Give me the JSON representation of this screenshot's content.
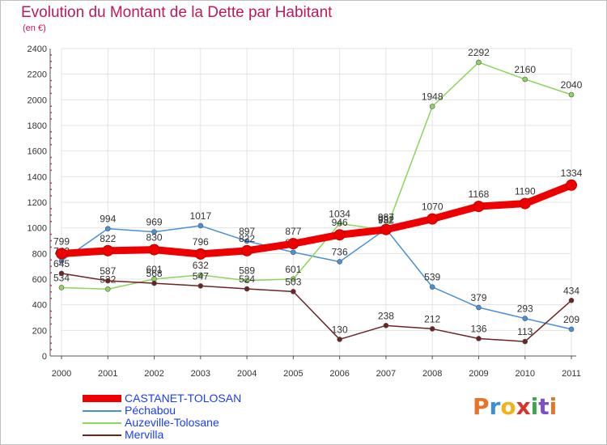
{
  "title": "Evolution du Montant de la Dette par Habitant",
  "subtitle": "(en €)",
  "logo_text": "Proxiti",
  "logo_colors": [
    "#e8742a",
    "#3a8fd8",
    "#f2b21c",
    "#d9342b",
    "#3ba64c",
    "#7b4fc7",
    "#e8742a"
  ],
  "colors": {
    "title": "#c2185b",
    "grid": "#e3e3e3",
    "axis_text": "#333333"
  },
  "chart_data": {
    "type": "line",
    "x": [
      "2000",
      "2001",
      "2002",
      "2003",
      "2004",
      "2005",
      "2006",
      "2007",
      "2008",
      "2009",
      "2010",
      "2011"
    ],
    "ylim": [
      0,
      2400
    ],
    "yticks": [
      0,
      200,
      400,
      600,
      800,
      1000,
      1200,
      1400,
      1600,
      1800,
      2000,
      2200,
      2400
    ],
    "grid": true,
    "legend_position": "bottom-left",
    "series": [
      {
        "name": "CASTANET-TOLOSAN",
        "color": "#ee0000",
        "thick": true,
        "values": [
          799,
          822,
          830,
          796,
          822,
          877,
          946,
          987,
          1070,
          1168,
          1190,
          1334
        ],
        "labels": [
          "799",
          "822",
          "830",
          "796",
          "822",
          "877",
          "946",
          "987",
          "1070",
          "1168",
          "1190",
          "1334"
        ]
      },
      {
        "name": "Péchabou",
        "color": "#4a90d9",
        "thick": false,
        "values": [
          742,
          994,
          969,
          1017,
          897,
          810,
          736,
          992,
          539,
          379,
          293,
          209
        ],
        "labels": [
          "742",
          "994",
          "969",
          "1017",
          "897",
          "810",
          "736",
          "992",
          "539",
          "379",
          "293",
          "209"
        ]
      },
      {
        "name": "Auzeville-Tolosane",
        "color": "#8ed45f",
        "thick": false,
        "values": [
          534,
          522,
          601,
          632,
          589,
          601,
          1034,
          982,
          1948,
          2292,
          2160,
          2040
        ],
        "labels": [
          "534",
          "522",
          "601",
          "632",
          "589",
          "601",
          "1034",
          "982",
          "1948",
          "2292",
          "2160",
          "2040"
        ]
      },
      {
        "name": "Mervilla",
        "color": "#6b2323",
        "thick": false,
        "values": [
          645,
          587,
          568,
          547,
          524,
          503,
          130,
          238,
          212,
          136,
          113,
          434
        ],
        "labels": [
          "645",
          "587",
          "568",
          "547",
          "524",
          "503",
          "130",
          "238",
          "212",
          "136",
          "113",
          "434"
        ]
      }
    ]
  }
}
